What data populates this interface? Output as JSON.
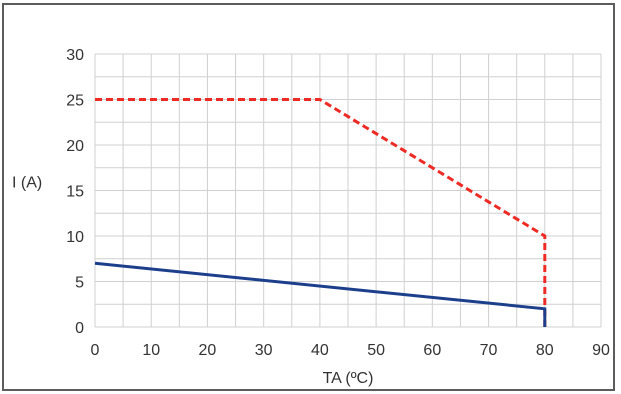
{
  "chart_data": {
    "type": "line",
    "title": "",
    "xlabel": "TA (ºC)",
    "ylabel": "I (A)",
    "xlim": [
      0,
      90
    ],
    "ylim": [
      0,
      30
    ],
    "x_ticks": [
      "0",
      "10",
      "20",
      "30",
      "40",
      "50",
      "60",
      "70",
      "80",
      "90"
    ],
    "y_ticks": [
      "0",
      "5",
      "10",
      "15",
      "20",
      "25",
      "30"
    ],
    "x_minor_step": 5,
    "y_minor_step": 2.5,
    "grid": true,
    "legend": "none",
    "series": [
      {
        "style": "dashed",
        "color": "#ee2a24",
        "x": [
          0,
          40,
          80,
          80
        ],
        "y": [
          25,
          25,
          10,
          0
        ]
      },
      {
        "style": "solid",
        "color": "#1c3f8c",
        "x": [
          0,
          80,
          80
        ],
        "y": [
          7,
          2,
          0
        ]
      }
    ]
  },
  "colors": {
    "grid": "#d0d0d0",
    "axis_text": "#333333",
    "frame": "#5c5c5c"
  }
}
